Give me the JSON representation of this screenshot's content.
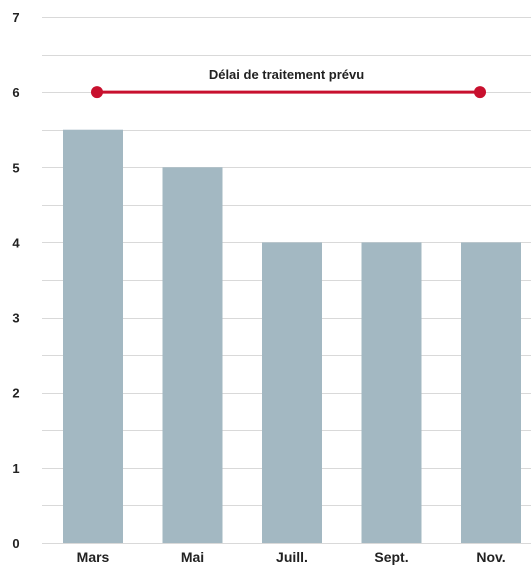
{
  "chart_data": {
    "type": "bar",
    "categories": [
      "Mars",
      "Mai",
      "Juill.",
      "Sept.",
      "Nov."
    ],
    "values": [
      5.5,
      5,
      4,
      4,
      4
    ],
    "ylim": [
      0,
      7
    ],
    "yticks": [
      "0",
      "1",
      "2",
      "3",
      "4",
      "5",
      "6",
      "7"
    ],
    "grid": true,
    "minor_grid": true,
    "reference_line": {
      "label": "Délai de traitement prévu",
      "value": 6,
      "from_category": "Mars",
      "to_category": "Nov."
    },
    "colors": {
      "bar": "#a3b8c2",
      "reference_line": "#c8102e",
      "grid": "#d9d9d9",
      "text": "#222222"
    }
  }
}
